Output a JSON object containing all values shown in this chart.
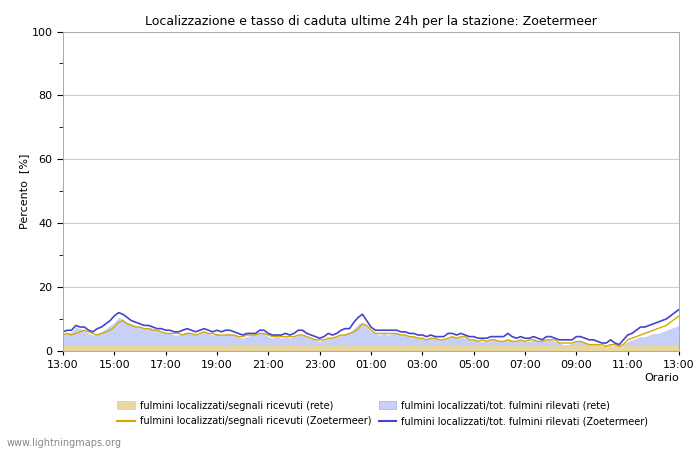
{
  "title": "Localizzazione e tasso di caduta ultime 24h per la stazione: Zoetermeer",
  "xlabel": "Orario",
  "xlim": [
    0,
    144
  ],
  "ylim": [
    0,
    100
  ],
  "yticks": [
    0,
    20,
    40,
    60,
    80,
    100
  ],
  "xtick_labels": [
    "13:00",
    "15:00",
    "17:00",
    "19:00",
    "21:00",
    "23:00",
    "01:00",
    "03:00",
    "05:00",
    "07:00",
    "09:00",
    "11:00",
    "13:00"
  ],
  "xtick_positions": [
    0,
    12,
    24,
    36,
    48,
    60,
    72,
    84,
    96,
    108,
    120,
    132,
    144
  ],
  "background_color": "#ffffff",
  "plot_bg_color": "#ffffff",
  "grid_color": "#cccccc",
  "watermark": "www.lightningmaps.org",
  "fill_signals_rete_color": "#e8d8a0",
  "fill_total_rete_color": "#c8d0f8",
  "line_signals_zoetermeer_color": "#d4aa00",
  "line_total_zoetermeer_color": "#4444cc",
  "legend_labels": [
    "fulmini localizzati/segnali ricevuti (rete)",
    "fulmini localizzati/segnali ricevuti (Zoetermeer)",
    "fulmini localizzati/tot. fulmini rilevati (rete)",
    "fulmini localizzati/tot. fulmini rilevati (Zoetermeer)"
  ],
  "rete_signals": [
    1.5,
    1.5,
    1.5,
    1.5,
    1.5,
    1.5,
    1.5,
    1.5,
    1.5,
    1.5,
    1.5,
    1.5,
    1.5,
    1.5,
    1.5,
    1.5,
    1.5,
    1.5,
    1.5,
    1.5,
    1.5,
    1.5,
    1.5,
    1.5,
    1.5,
    1.5,
    1.5,
    1.5,
    1.5,
    1.5,
    1.5,
    1.5,
    1.5,
    1.5,
    1.5,
    1.5,
    1.5,
    1.5,
    1.5,
    1.5,
    1.5,
    1.5,
    1.5,
    1.5,
    1.5,
    1.5,
    1.5,
    1.5,
    1.5,
    1.5,
    1.5,
    1.5,
    1.5,
    1.5,
    1.5,
    1.5,
    1.5,
    1.5,
    1.5,
    1.5,
    1.5,
    1.5,
    1.5,
    1.5,
    1.5,
    1.5,
    1.5,
    1.5,
    1.5,
    1.5,
    1.5,
    1.5,
    1.5,
    1.5,
    1.5,
    1.5,
    1.5,
    1.5,
    1.5,
    1.5,
    1.5,
    1.5,
    1.5,
    1.5,
    1.5,
    1.5,
    1.5,
    1.5,
    1.5,
    1.5,
    1.5,
    1.5,
    1.5,
    1.5,
    1.5,
    1.5,
    1.5,
    1.5,
    1.5,
    1.5,
    1.5,
    1.5,
    1.5,
    1.5,
    1.5,
    1.5,
    1.5,
    1.5,
    1.5,
    1.5,
    1.5,
    1.5,
    1.5,
    1.5,
    1.5,
    1.5,
    1.5,
    1.5,
    1.5,
    1.5,
    1.5,
    1.5,
    1.5,
    1.5,
    1.5,
    1.5,
    1.5,
    1.5,
    1.5,
    1.5,
    1.5,
    1.5,
    1.5,
    1.5,
    1.5,
    1.5,
    1.5,
    1.5,
    1.5,
    1.5,
    1.5,
    1.5,
    1.5,
    1.5,
    1.5
  ],
  "rete_total": [
    5.0,
    5.5,
    6.0,
    7.5,
    7.0,
    6.5,
    5.5,
    5.0,
    5.5,
    6.0,
    7.0,
    8.0,
    9.0,
    10.5,
    10.0,
    9.0,
    8.5,
    8.0,
    7.5,
    7.0,
    7.5,
    7.0,
    6.5,
    6.0,
    5.5,
    5.5,
    5.0,
    5.0,
    5.5,
    6.0,
    5.5,
    5.0,
    5.5,
    6.0,
    5.5,
    5.0,
    5.5,
    5.0,
    5.5,
    5.5,
    5.0,
    4.5,
    4.0,
    4.5,
    5.0,
    5.0,
    5.5,
    5.5,
    4.5,
    4.0,
    4.5,
    4.0,
    4.5,
    4.0,
    4.5,
    5.0,
    5.0,
    4.5,
    4.0,
    3.5,
    3.0,
    3.5,
    4.0,
    4.0,
    4.5,
    5.0,
    5.5,
    6.0,
    7.0,
    8.5,
    9.0,
    7.5,
    6.0,
    5.5,
    5.0,
    5.5,
    5.0,
    5.5,
    5.5,
    5.0,
    5.0,
    4.5,
    4.5,
    4.0,
    4.0,
    3.5,
    4.0,
    4.0,
    3.5,
    3.5,
    4.0,
    4.5,
    4.0,
    4.5,
    4.0,
    3.5,
    3.5,
    3.0,
    3.0,
    3.0,
    3.5,
    3.5,
    3.0,
    3.0,
    3.5,
    3.0,
    3.0,
    3.5,
    3.0,
    3.0,
    3.5,
    3.0,
    3.0,
    3.5,
    3.5,
    3.0,
    2.5,
    2.0,
    2.0,
    2.5,
    3.0,
    3.0,
    2.5,
    2.0,
    2.0,
    2.0,
    1.5,
    1.5,
    2.0,
    1.5,
    1.0,
    2.0,
    3.0,
    3.5,
    4.0,
    4.5,
    4.5,
    5.0,
    5.5,
    5.5,
    6.0,
    6.5,
    7.0,
    7.5,
    8.0
  ],
  "zoetermeer_signals": [
    5.0,
    5.5,
    5.0,
    5.5,
    6.0,
    6.5,
    6.0,
    5.5,
    5.0,
    5.5,
    6.0,
    6.5,
    7.5,
    9.0,
    9.5,
    8.5,
    8.0,
    7.5,
    7.5,
    7.0,
    7.0,
    6.5,
    6.5,
    6.0,
    5.5,
    5.5,
    5.5,
    5.5,
    5.0,
    5.5,
    5.5,
    5.0,
    5.5,
    6.0,
    5.5,
    5.5,
    5.0,
    5.0,
    5.0,
    5.0,
    5.0,
    4.5,
    4.5,
    5.0,
    5.0,
    5.0,
    5.5,
    5.5,
    5.0,
    4.5,
    4.5,
    4.5,
    4.5,
    4.5,
    4.5,
    5.0,
    5.0,
    4.5,
    4.0,
    3.5,
    3.5,
    3.5,
    4.0,
    4.0,
    4.5,
    5.0,
    5.0,
    5.5,
    6.0,
    7.0,
    8.5,
    8.0,
    6.5,
    5.5,
    5.5,
    5.5,
    5.5,
    5.5,
    5.5,
    5.0,
    5.0,
    4.5,
    4.5,
    4.0,
    4.0,
    3.5,
    4.0,
    4.0,
    3.5,
    3.5,
    4.0,
    4.5,
    4.0,
    4.5,
    4.5,
    3.5,
    3.5,
    3.0,
    3.5,
    3.0,
    3.5,
    3.5,
    3.0,
    3.0,
    3.5,
    3.0,
    3.0,
    3.5,
    3.0,
    3.5,
    3.5,
    3.0,
    3.0,
    3.5,
    3.5,
    3.5,
    2.5,
    2.5,
    2.5,
    2.5,
    3.0,
    3.0,
    2.5,
    2.0,
    2.0,
    2.0,
    2.0,
    1.5,
    2.0,
    2.0,
    1.5,
    2.0,
    3.5,
    4.0,
    4.5,
    5.0,
    5.5,
    6.0,
    6.5,
    7.0,
    7.5,
    8.0,
    9.0,
    10.0,
    11.0
  ],
  "zoetermeer_total": [
    6.0,
    6.5,
    6.5,
    8.0,
    7.5,
    7.5,
    6.5,
    6.0,
    7.0,
    7.5,
    8.5,
    9.5,
    11.0,
    12.0,
    11.5,
    10.5,
    9.5,
    9.0,
    8.5,
    8.0,
    8.0,
    7.5,
    7.0,
    7.0,
    6.5,
    6.5,
    6.0,
    6.0,
    6.5,
    7.0,
    6.5,
    6.0,
    6.5,
    7.0,
    6.5,
    6.0,
    6.5,
    6.0,
    6.5,
    6.5,
    6.0,
    5.5,
    5.0,
    5.5,
    5.5,
    5.5,
    6.5,
    6.5,
    5.5,
    5.0,
    5.0,
    5.0,
    5.5,
    5.0,
    5.5,
    6.5,
    6.5,
    5.5,
    5.0,
    4.5,
    4.0,
    4.5,
    5.5,
    5.0,
    5.5,
    6.5,
    7.0,
    7.0,
    9.0,
    10.5,
    11.5,
    9.5,
    7.5,
    6.5,
    6.5,
    6.5,
    6.5,
    6.5,
    6.5,
    6.0,
    6.0,
    5.5,
    5.5,
    5.0,
    5.0,
    4.5,
    5.0,
    4.5,
    4.5,
    4.5,
    5.5,
    5.5,
    5.0,
    5.5,
    5.0,
    4.5,
    4.5,
    4.0,
    4.0,
    4.0,
    4.5,
    4.5,
    4.5,
    4.5,
    5.5,
    4.5,
    4.0,
    4.5,
    4.0,
    4.0,
    4.5,
    4.0,
    3.5,
    4.5,
    4.5,
    4.0,
    3.5,
    3.5,
    3.5,
    3.5,
    4.5,
    4.5,
    4.0,
    3.5,
    3.5,
    3.0,
    2.5,
    2.5,
    3.5,
    2.5,
    2.0,
    3.5,
    5.0,
    5.5,
    6.5,
    7.5,
    7.5,
    8.0,
    8.5,
    9.0,
    9.5,
    10.0,
    11.0,
    12.0,
    13.0
  ]
}
